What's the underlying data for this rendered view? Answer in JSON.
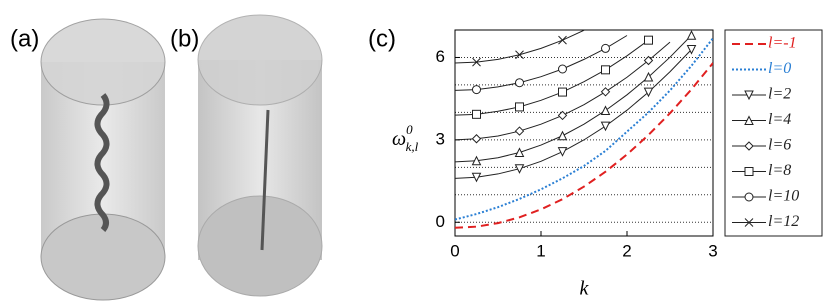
{
  "panels": [
    "(a)",
    "(b)",
    "(c)"
  ],
  "chart_data": {
    "type": "line",
    "x_label": "k",
    "y_label": {
      "base": "ω",
      "sup": "0",
      "sub": "k,l"
    },
    "x": [
      0,
      0.25,
      0.5,
      0.75,
      1,
      1.25,
      1.5,
      1.75,
      2,
      2.25,
      2.5,
      2.75,
      3
    ],
    "xlim": [
      0,
      3
    ],
    "xticks": [
      0,
      1,
      2,
      3
    ],
    "ylim": [
      -0.5,
      7
    ],
    "yticks": [
      0,
      3,
      6
    ],
    "ygrid": [
      0,
      1,
      2,
      3,
      4,
      5,
      6,
      7
    ],
    "series": [
      {
        "name": "l=-1",
        "color": "#e02020",
        "dash": "dashed",
        "marker": null,
        "values": [
          -0.2,
          -0.16,
          -0.03,
          0.18,
          0.47,
          0.84,
          1.3,
          1.84,
          2.47,
          3.18,
          3.97,
          4.84,
          5.8
        ]
      },
      {
        "name": "l=0",
        "color": "#2a7fd4",
        "dash": "dotted",
        "marker": null,
        "values": [
          0.1,
          0.3,
          0.55,
          0.85,
          1.2,
          1.6,
          2.05,
          2.6,
          3.3,
          4.0,
          4.8,
          5.7,
          6.7
        ]
      },
      {
        "name": "l=2",
        "color": "#222222",
        "dash": "solid",
        "marker": "triangle-down",
        "values": [
          1.6,
          1.64,
          1.76,
          1.95,
          2.22,
          2.57,
          3.0,
          3.5,
          4.08,
          4.74,
          5.48,
          6.29,
          null
        ]
      },
      {
        "name": "l=4",
        "color": "#222222",
        "dash": "solid",
        "marker": "triangle-up",
        "values": [
          2.2,
          2.24,
          2.35,
          2.54,
          2.81,
          3.15,
          3.57,
          4.07,
          4.64,
          5.29,
          6.01,
          6.81,
          null
        ]
      },
      {
        "name": "l=6",
        "color": "#222222",
        "dash": "solid",
        "marker": "diamond",
        "values": [
          3.0,
          3.04,
          3.14,
          3.32,
          3.57,
          3.89,
          4.28,
          4.75,
          5.28,
          5.89,
          6.56,
          null,
          null
        ]
      },
      {
        "name": "l=8",
        "color": "#222222",
        "dash": "solid",
        "marker": "square",
        "values": [
          3.9,
          3.93,
          4.04,
          4.2,
          4.44,
          4.74,
          5.12,
          5.55,
          6.06,
          6.63,
          null,
          null,
          null
        ]
      },
      {
        "name": "l=10",
        "color": "#222222",
        "dash": "solid",
        "marker": "circle",
        "values": [
          4.8,
          4.83,
          4.93,
          5.08,
          5.3,
          5.58,
          5.93,
          6.33,
          6.8,
          null,
          null,
          null,
          null
        ]
      },
      {
        "name": "l=12",
        "color": "#222222",
        "dash": "solid",
        "marker": "x",
        "values": [
          5.8,
          5.83,
          5.93,
          6.1,
          6.33,
          6.63,
          6.99,
          null,
          null,
          null,
          null,
          null,
          null
        ]
      }
    ]
  }
}
